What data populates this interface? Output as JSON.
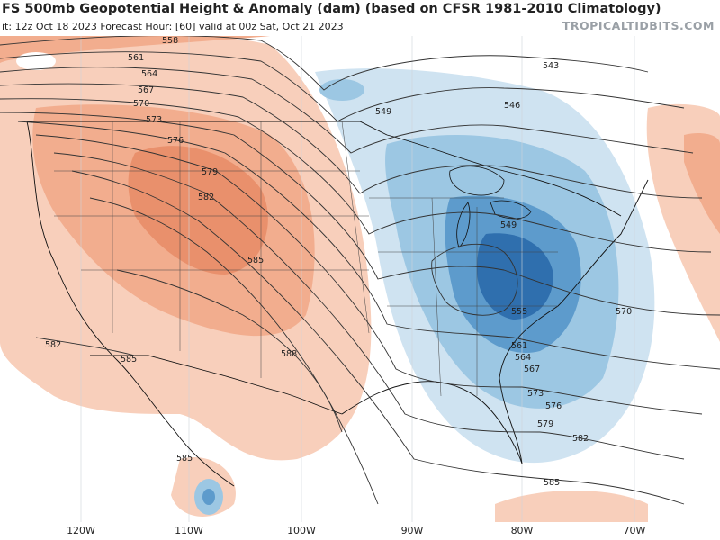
{
  "header": {
    "title": "FS 500mb Geopotential Height & Anomaly (dam) (based on CFSR 1981-2010 Climatology)",
    "subtitle": "it: 12z Oct 18 2023   Forecast Hour: [60]   valid at 00z Sat, Oct 21 2023",
    "brand": "TROPICALTIDBITS.COM"
  },
  "axis": {
    "longitudes": [
      {
        "label": "120W",
        "value": -120
      },
      {
        "label": "110W",
        "value": -110
      },
      {
        "label": "100W",
        "value": -100
      },
      {
        "label": "90W",
        "value": -90
      },
      {
        "label": "80W",
        "value": -80
      },
      {
        "label": "70W",
        "value": -70
      }
    ]
  },
  "contour_labels": [
    "558",
    "561",
    "564",
    "567",
    "570",
    "573",
    "576",
    "579",
    "582",
    "585",
    "588",
    "582",
    "585",
    "546",
    "549",
    "543",
    "549",
    "555",
    "561",
    "564",
    "567",
    "570",
    "573",
    "576",
    "579",
    "582",
    "585",
    "585"
  ],
  "colors": {
    "positive_light": "#f8cfbb",
    "positive_mid": "#f2ad8e",
    "positive_strong": "#e9906c",
    "negative_light": "#cfe3f1",
    "negative_mid": "#9cc7e3",
    "negative_strong": "#5d9bcc",
    "negative_core": "#2f6fae",
    "contour": "#333333",
    "border": "#111111"
  }
}
